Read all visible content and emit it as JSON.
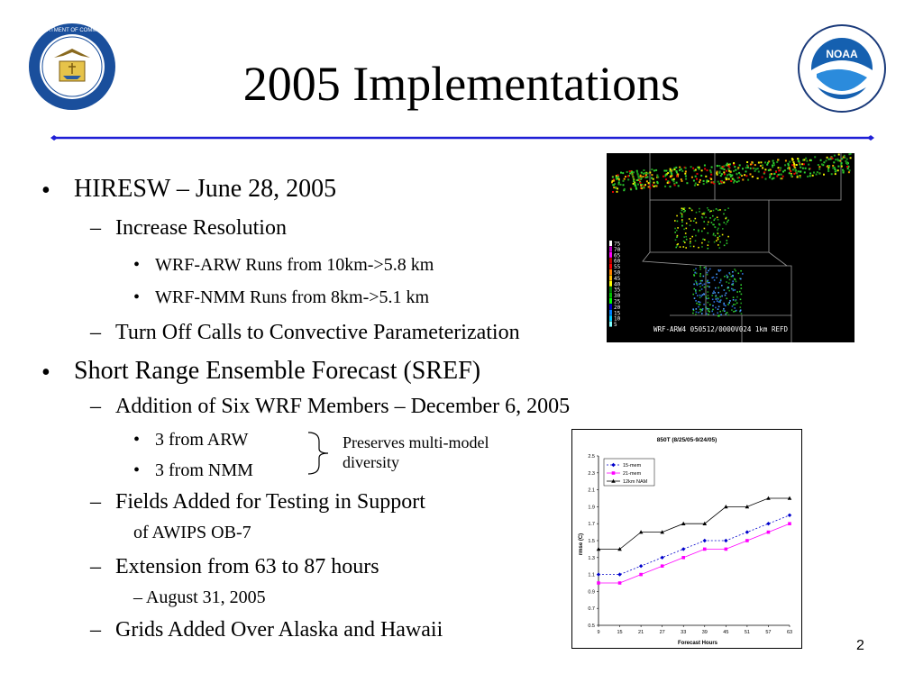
{
  "slide": {
    "title": "2005 Implementations",
    "page_number": "2",
    "logos": {
      "left": "Department of Commerce seal",
      "left_text_top": "DEPARTMENT OF COMMERCE",
      "left_text_bottom": "UNITED STATES OF AMERICA",
      "right": "NOAA logo",
      "right_text": "NOAA",
      "right_ring": "NATIONAL OCEANIC AND ATMOSPHERIC ADMINISTRATION · U.S. DEPARTMENT OF COMMERCE"
    },
    "colors": {
      "rule": "#1f1fd6",
      "chart_line1": "#0000cc",
      "chart_line2": "#ff00ff",
      "chart_line3": "#000000"
    }
  },
  "bullets": {
    "b1": "HIRESW – June 28, 2005",
    "b1_s1": "Increase Resolution",
    "b1_s1_a": "WRF-ARW Runs from 10km->5.8 km",
    "b1_s1_b": "WRF-NMM Runs from 8km->5.1 km",
    "b1_s2": "Turn Off Calls to Convective Parameterization",
    "b2": "Short Range Ensemble Forecast (SREF)",
    "b2_s1": "Addition of Six WRF Members – December 6, 2005",
    "b2_s1_a": "3 from ARW",
    "b2_s1_b": "3 from NMM",
    "b2_note": "Preserves multi-model diversity",
    "b2_s2": "Fields Added for Testing in Support",
    "b2_s2_cont": "of AWIPS OB-7",
    "b2_s3": "Extension from 63 to 87 hours",
    "b2_s3_cont": "– August 31, 2005",
    "b2_s4": "Grids Added Over Alaska and Hawaii"
  },
  "radar_image": {
    "caption": "WRF-ARW4 050512/0000V024 1km REFD",
    "scale": [
      "75",
      "70",
      "65",
      "60",
      "55",
      "50",
      "45",
      "40",
      "35",
      "30",
      "25",
      "20",
      "15",
      "10",
      "5"
    ]
  },
  "chart_data": {
    "type": "line",
    "title": "850T (8/25/05-9/24/05)",
    "xlabel": "Forecast Hours",
    "ylabel": "rmse (C)",
    "categories": [
      "9",
      "15",
      "21",
      "27",
      "33",
      "39",
      "45",
      "51",
      "57",
      "63"
    ],
    "ylim": [
      0.5,
      2.5
    ],
    "yticks": [
      "0.5",
      "0.7",
      "0.9",
      "1.1",
      "1.3",
      "1.5",
      "1.7",
      "1.9",
      "2.1",
      "2.3",
      "2.5"
    ],
    "legend_position": "top-left",
    "series": [
      {
        "name": "15-mem",
        "values": [
          1.1,
          1.1,
          1.2,
          1.3,
          1.4,
          1.5,
          1.5,
          1.6,
          1.7,
          1.8
        ]
      },
      {
        "name": "21-mem",
        "values": [
          1.0,
          1.0,
          1.1,
          1.2,
          1.3,
          1.4,
          1.4,
          1.5,
          1.6,
          1.7
        ]
      },
      {
        "name": "12km NAM",
        "values": [
          1.4,
          1.4,
          1.6,
          1.6,
          1.7,
          1.7,
          1.9,
          1.9,
          2.0,
          2.0
        ]
      }
    ]
  }
}
